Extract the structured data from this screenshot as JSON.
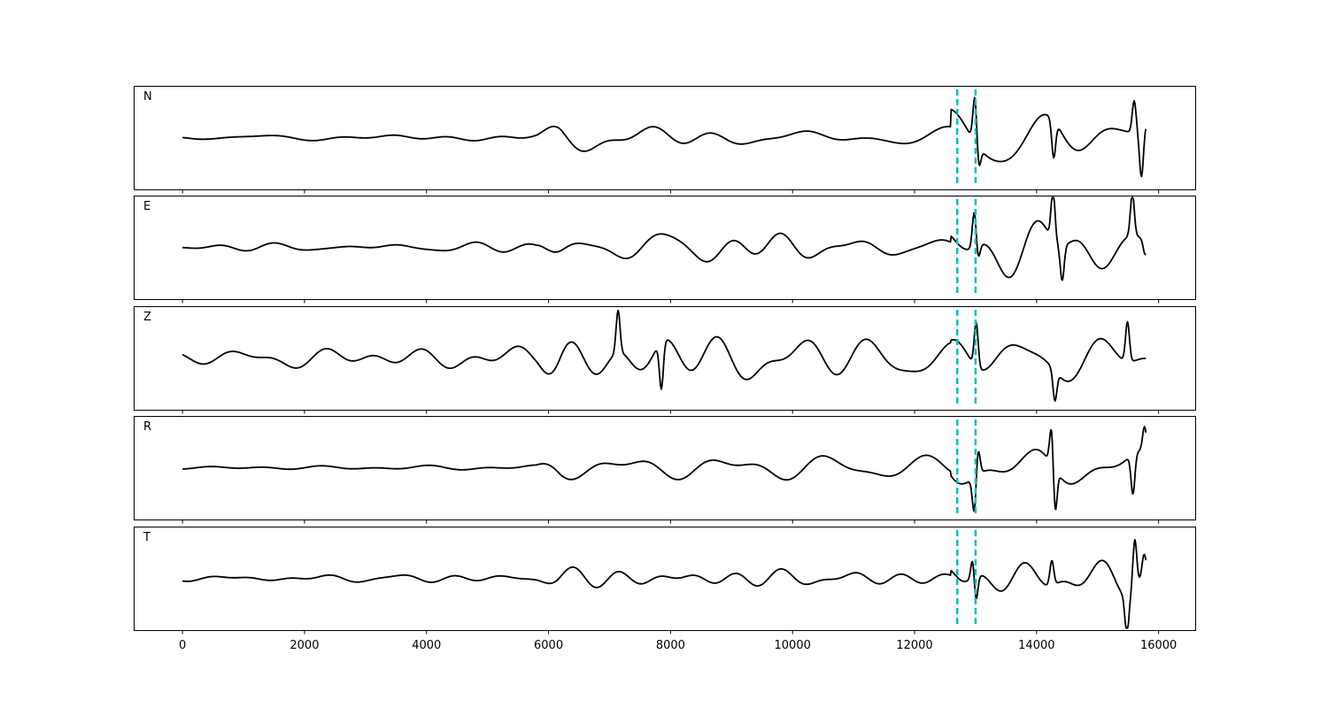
{
  "chart_data": {
    "type": "line",
    "panels": [
      {
        "name": "N",
        "seed": 11,
        "quiet_amp": 0.06,
        "mid_amp": 0.28,
        "late_amp": 0.55,
        "spikes": [
          {
            "x": 12990,
            "y": 0.95
          },
          {
            "x": 13050,
            "y": -0.45
          },
          {
            "x": 14280,
            "y": -0.75
          },
          {
            "x": 15720,
            "y": -0.85
          },
          {
            "x": 15600,
            "y": 0.65
          },
          {
            "x": 15790,
            "y": 0.25
          }
        ]
      },
      {
        "name": "E",
        "seed": 23,
        "quiet_amp": 0.06,
        "mid_amp": 0.33,
        "late_amp": 0.55,
        "spikes": [
          {
            "x": 12980,
            "y": 0.75
          },
          {
            "x": 13040,
            "y": -0.3
          },
          {
            "x": 14270,
            "y": 1.0
          },
          {
            "x": 14420,
            "y": -0.7
          },
          {
            "x": 15570,
            "y": 0.85
          },
          {
            "x": 15780,
            "y": -0.3
          }
        ]
      },
      {
        "name": "Z",
        "seed": 37,
        "quiet_amp": 0.18,
        "mid_amp": 0.75,
        "late_amp": 0.65,
        "spikes": [
          {
            "x": 7140,
            "y": 0.85
          },
          {
            "x": 7850,
            "y": -0.95
          },
          {
            "x": 13010,
            "y": 0.9
          },
          {
            "x": 15490,
            "y": 0.8
          },
          {
            "x": 14300,
            "y": -0.6
          }
        ]
      },
      {
        "name": "R",
        "seed": 53,
        "quiet_amp": 0.06,
        "mid_amp": 0.35,
        "late_amp": 0.55,
        "spikes": [
          {
            "x": 12980,
            "y": -0.75
          },
          {
            "x": 13040,
            "y": 0.55
          },
          {
            "x": 14250,
            "y": 0.9
          },
          {
            "x": 14300,
            "y": -1.0
          },
          {
            "x": 15580,
            "y": -0.8
          },
          {
            "x": 15770,
            "y": 0.5
          }
        ]
      },
      {
        "name": "T",
        "seed": 71,
        "quiet_amp": 0.05,
        "mid_amp": 0.22,
        "late_amp": 0.45,
        "spikes": [
          {
            "x": 12960,
            "y": 0.55
          },
          {
            "x": 13000,
            "y": -0.65
          },
          {
            "x": 14250,
            "y": 0.5
          },
          {
            "x": 15480,
            "y": -0.75
          },
          {
            "x": 15610,
            "y": 1.0
          },
          {
            "x": 15760,
            "y": 0.4
          }
        ]
      }
    ],
    "xlim": [
      -800,
      16600
    ],
    "x_start": 0,
    "x_end": 15800,
    "x_ticks": [
      0,
      2000,
      4000,
      6000,
      8000,
      10000,
      12000,
      14000,
      16000
    ],
    "x_tick_labels": [
      "0",
      "2000",
      "4000",
      "6000",
      "8000",
      "10000",
      "12000",
      "14000",
      "16000"
    ],
    "markers": [
      {
        "x": 12700,
        "color": "#00bfbf",
        "style": "dashed"
      },
      {
        "x": 13000,
        "color": "#00bfbf",
        "style": "dashed"
      }
    ],
    "line_color": "#000000",
    "xlabel": "",
    "ylabel": "",
    "title": ""
  }
}
